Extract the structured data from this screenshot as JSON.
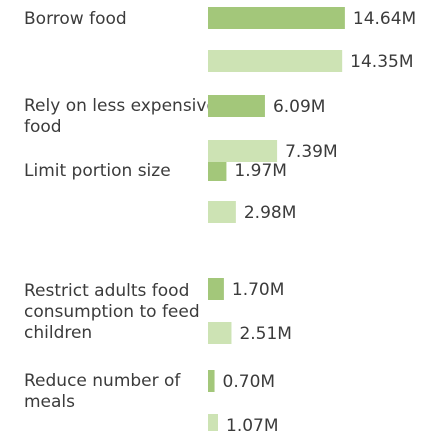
{
  "chart_data": {
    "type": "bar",
    "orientation": "horizontal",
    "categories": [
      "Borrow food",
      "Rely on less expensive food",
      "Limit portion size",
      "Restrict adults food consumption to feed children",
      "Reduce number of meals"
    ],
    "series": [
      {
        "color": "#a3c77a",
        "values": [
          14.64,
          6.09,
          1.97,
          1.7,
          0.7
        ],
        "labels": [
          "14.64M",
          "6.09M",
          "1.97M",
          "1.70M",
          "0.70M"
        ]
      },
      {
        "color": "#cde3b4",
        "values": [
          14.35,
          7.39,
          2.98,
          2.51,
          1.07
        ],
        "labels": [
          "14.35M",
          "7.39M",
          "2.98M",
          "2.51M",
          "1.07M"
        ]
      }
    ],
    "units": "M",
    "grid": false,
    "legend": "none"
  }
}
